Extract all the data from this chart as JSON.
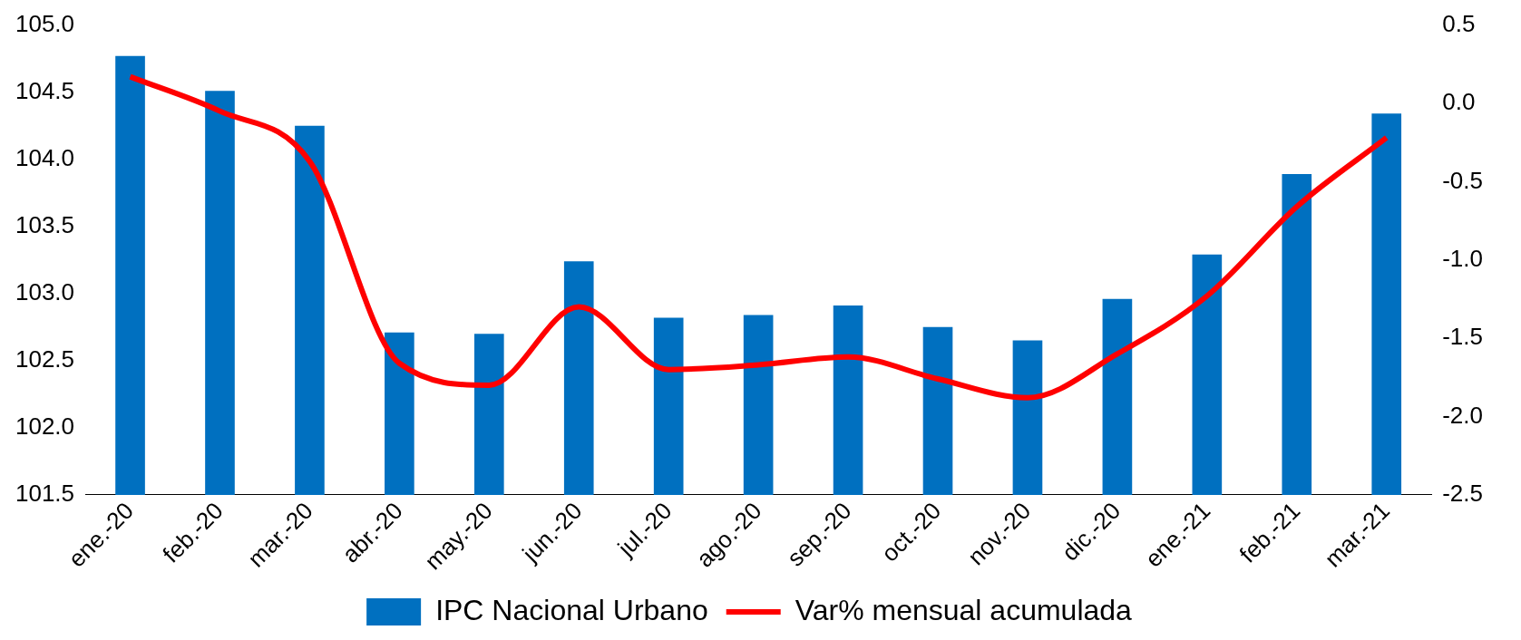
{
  "chart_data": {
    "type": "bar",
    "categories": [
      "ene.-20",
      "feb.-20",
      "mar.-20",
      "abr.-20",
      "may.-20",
      "jun.-20",
      "jul.-20",
      "ago.-20",
      "sep.-20",
      "oct.-20",
      "nov.-20",
      "dic.-20",
      "ene.-21",
      "feb.-21",
      "mar.-21"
    ],
    "series": [
      {
        "name": "IPC Nacional Urbano",
        "color": "#0070c0",
        "values": [
          104.77,
          104.51,
          104.25,
          102.71,
          102.7,
          103.24,
          102.82,
          102.84,
          102.91,
          102.75,
          102.65,
          102.96,
          103.29,
          103.89,
          104.34
        ]
      },
      {
        "name": "Var% mensual acumulada",
        "type": "line",
        "axis": "y2",
        "color": "#ff0000",
        "values": [
          0.17,
          -0.05,
          -0.37,
          -1.66,
          -1.8,
          -1.3,
          -1.7,
          -1.67,
          -1.62,
          -1.76,
          -1.88,
          -1.6,
          -1.23,
          -0.66,
          -0.22
        ]
      }
    ],
    "ylim": [
      101.5,
      105
    ],
    "yticks": [
      {
        "value": 101.5,
        "label": "101.5"
      },
      {
        "value": 102,
        "label": "102.0"
      },
      {
        "value": 102.5,
        "label": "102.5"
      },
      {
        "value": 103,
        "label": "103.0"
      },
      {
        "value": 103.5,
        "label": "103.5"
      },
      {
        "value": 104,
        "label": "104.0"
      },
      {
        "value": 104.5,
        "label": "104.5"
      },
      {
        "value": 105,
        "label": "105.0"
      }
    ],
    "y2lim": [
      -2.5,
      0.5
    ],
    "y2ticks": [
      -2.5,
      {
        "value": -2,
        "label": "-2.0"
      },
      -1.5,
      {
        "value": -1,
        "label": "-1.0"
      },
      -0.5,
      {
        "value": 0,
        "label": "0.0"
      },
      0.5
    ],
    "grid": false,
    "legend": "bottom",
    "marker": "none"
  }
}
